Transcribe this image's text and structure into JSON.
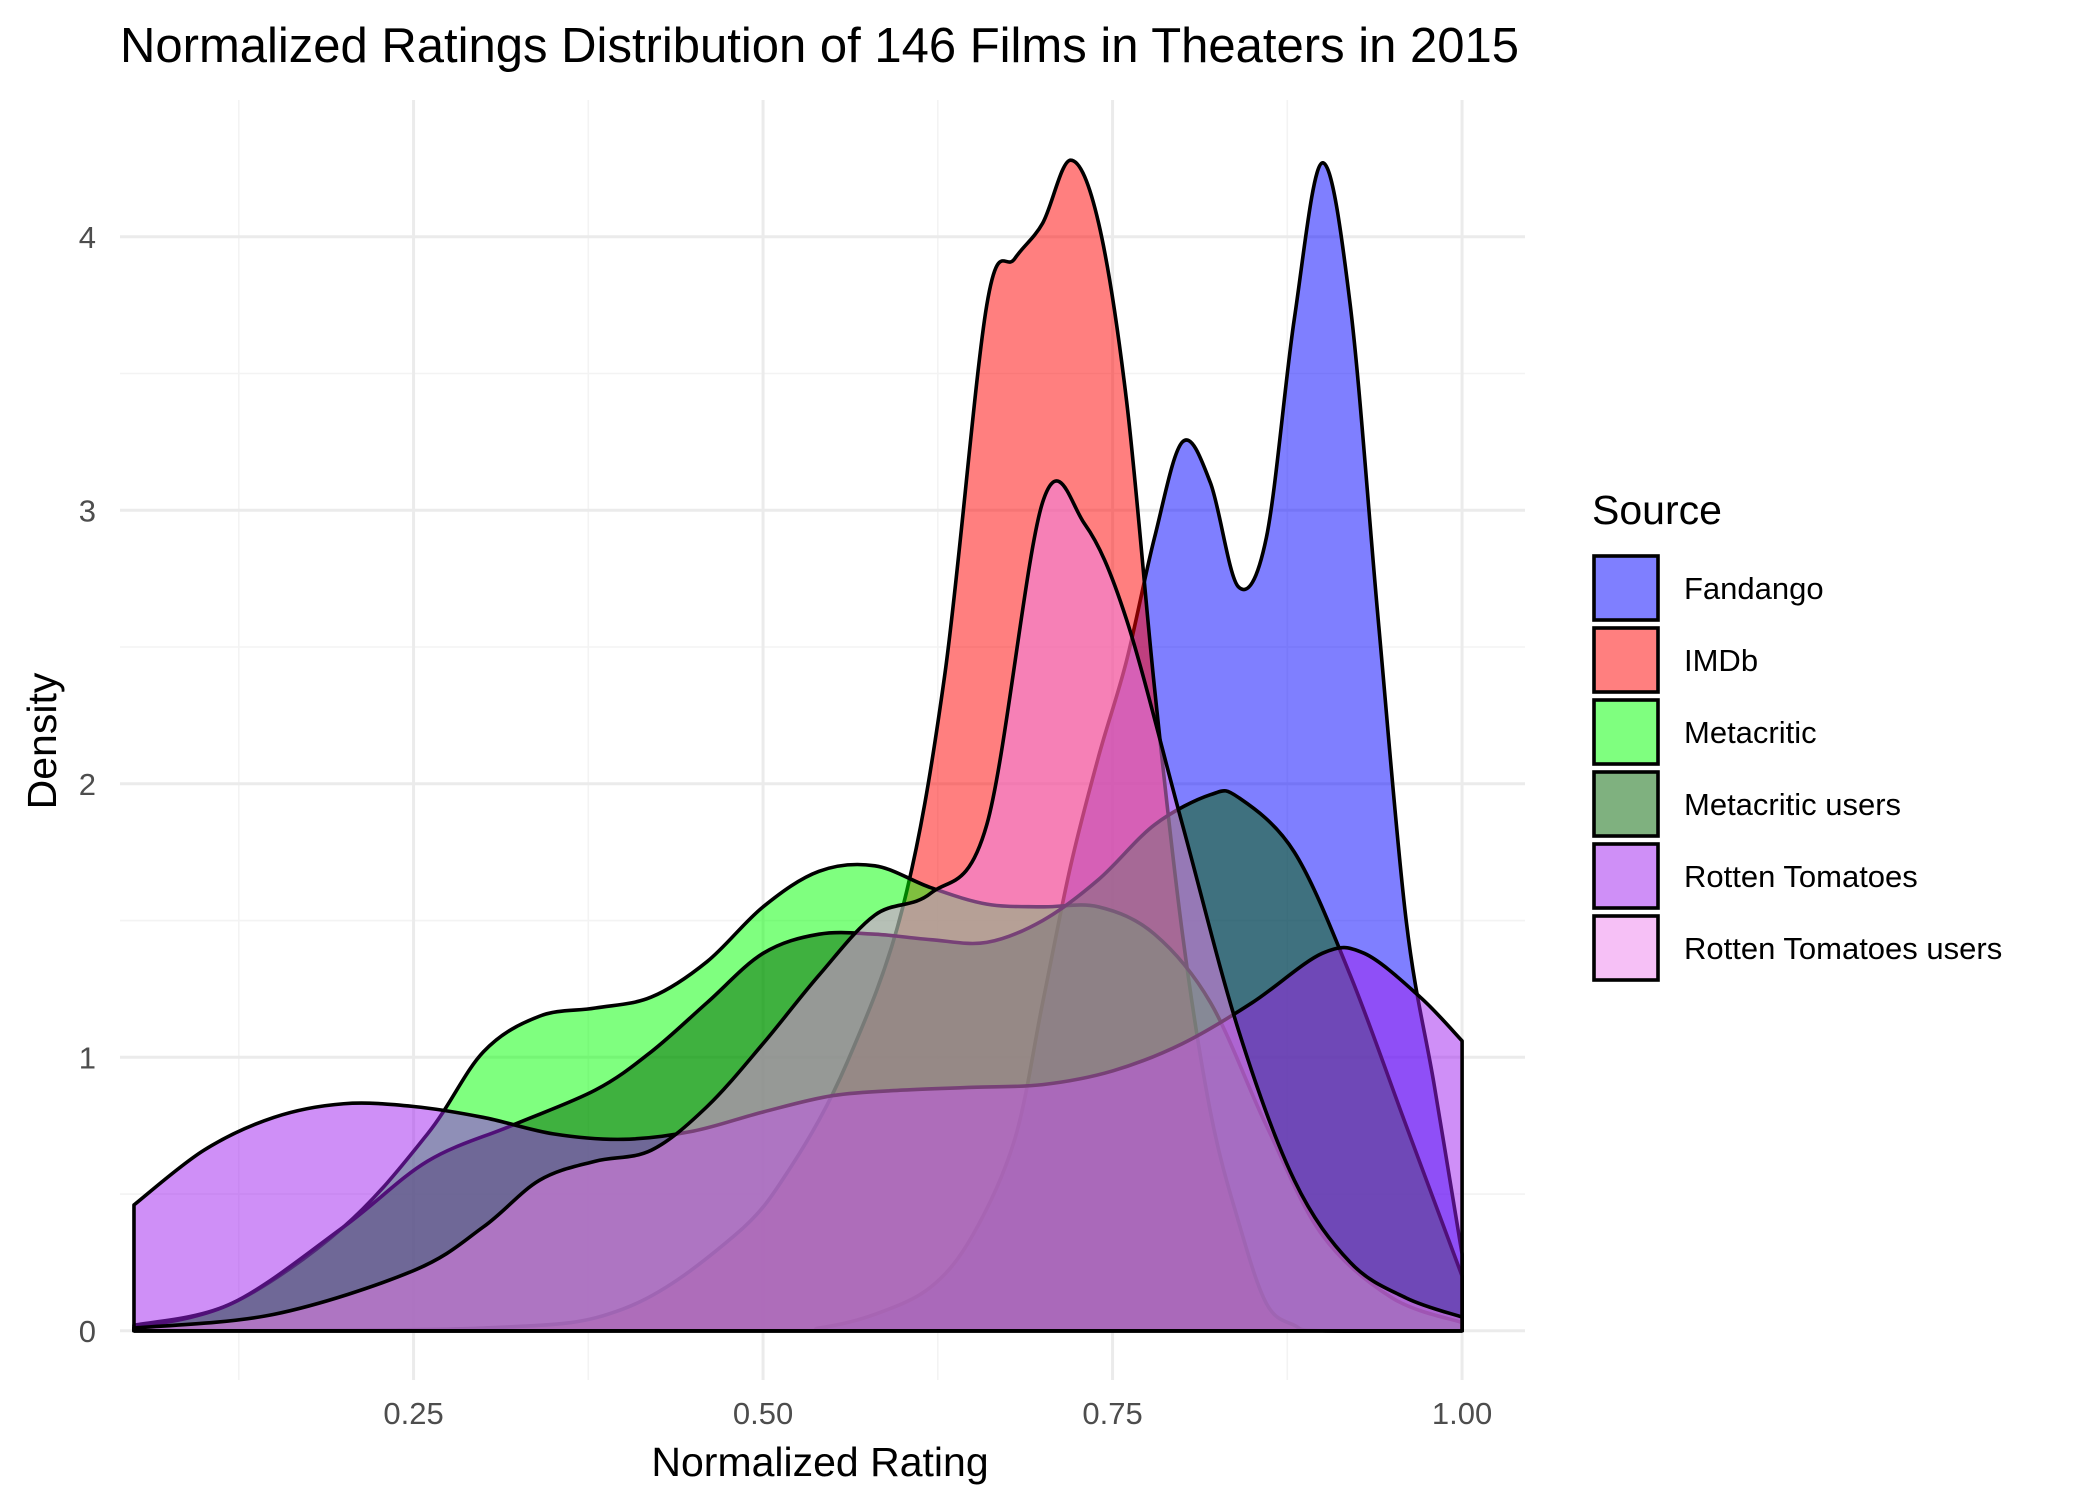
{
  "chart_data": {
    "type": "area",
    "subtype": "density",
    "title": "Normalized Ratings Distribution of 146 Films in Theaters in 2015",
    "xlabel": "Normalized Rating",
    "ylabel": "Density",
    "xlim": [
      0.04,
      1.045
    ],
    "ylim": [
      -0.18,
      4.5
    ],
    "x_ticks": [
      0.25,
      0.5,
      0.75,
      1.0
    ],
    "x_tick_labels": [
      "0.25",
      "0.50",
      "0.75",
      "1.00"
    ],
    "y_ticks": [
      0,
      1,
      2,
      3,
      4
    ],
    "y_tick_labels": [
      "0",
      "1",
      "2",
      "3",
      "4"
    ],
    "grid": true,
    "fill_alpha": 0.5,
    "legend": {
      "title": "Source",
      "position": "right"
    },
    "series": [
      {
        "name": "Fandango",
        "color": "#0000ff",
        "points": [
          [
            0.05,
            0
          ],
          [
            0.5,
            0
          ],
          [
            0.54,
            0.01
          ],
          [
            0.58,
            0.06
          ],
          [
            0.62,
            0.16
          ],
          [
            0.65,
            0.35
          ],
          [
            0.68,
            0.7
          ],
          [
            0.7,
            1.2
          ],
          [
            0.72,
            1.7
          ],
          [
            0.74,
            2.1
          ],
          [
            0.76,
            2.45
          ],
          [
            0.78,
            2.9
          ],
          [
            0.8,
            3.25
          ],
          [
            0.82,
            3.1
          ],
          [
            0.84,
            2.72
          ],
          [
            0.86,
            2.9
          ],
          [
            0.88,
            3.7
          ],
          [
            0.9,
            4.27
          ],
          [
            0.92,
            3.75
          ],
          [
            0.94,
            2.6
          ],
          [
            0.96,
            1.5
          ],
          [
            0.98,
            0.9
          ],
          [
            1.0,
            0.28
          ]
        ]
      },
      {
        "name": "IMDb",
        "color": "#ff0000",
        "points": [
          [
            0.05,
            0
          ],
          [
            0.3,
            0.01
          ],
          [
            0.4,
            0.08
          ],
          [
            0.48,
            0.35
          ],
          [
            0.52,
            0.6
          ],
          [
            0.56,
            0.98
          ],
          [
            0.6,
            1.55
          ],
          [
            0.63,
            2.4
          ],
          [
            0.66,
            3.75
          ],
          [
            0.68,
            3.92
          ],
          [
            0.7,
            4.05
          ],
          [
            0.72,
            4.28
          ],
          [
            0.74,
            4.05
          ],
          [
            0.76,
            3.4
          ],
          [
            0.78,
            2.35
          ],
          [
            0.8,
            1.45
          ],
          [
            0.82,
            0.8
          ],
          [
            0.84,
            0.4
          ],
          [
            0.86,
            0.1
          ],
          [
            0.88,
            0.02
          ],
          [
            0.9,
            0
          ],
          [
            1.0,
            0
          ]
        ]
      },
      {
        "name": "Metacritic",
        "color": "#00ff00",
        "points": [
          [
            0.05,
            0.02
          ],
          [
            0.12,
            0.1
          ],
          [
            0.2,
            0.38
          ],
          [
            0.26,
            0.72
          ],
          [
            0.3,
            1.02
          ],
          [
            0.34,
            1.15
          ],
          [
            0.38,
            1.18
          ],
          [
            0.42,
            1.22
          ],
          [
            0.46,
            1.35
          ],
          [
            0.5,
            1.55
          ],
          [
            0.54,
            1.68
          ],
          [
            0.58,
            1.7
          ],
          [
            0.62,
            1.62
          ],
          [
            0.66,
            1.56
          ],
          [
            0.7,
            1.55
          ],
          [
            0.74,
            1.55
          ],
          [
            0.78,
            1.45
          ],
          [
            0.82,
            1.2
          ],
          [
            0.86,
            0.75
          ],
          [
            0.9,
            0.35
          ],
          [
            0.95,
            0.12
          ],
          [
            1.0,
            0.03
          ]
        ]
      },
      {
        "name": "Metacritic users",
        "color": "#006400",
        "points": [
          [
            0.05,
            0.01
          ],
          [
            0.12,
            0.1
          ],
          [
            0.2,
            0.38
          ],
          [
            0.26,
            0.62
          ],
          [
            0.32,
            0.75
          ],
          [
            0.38,
            0.88
          ],
          [
            0.42,
            1.02
          ],
          [
            0.46,
            1.2
          ],
          [
            0.5,
            1.38
          ],
          [
            0.54,
            1.45
          ],
          [
            0.58,
            1.45
          ],
          [
            0.62,
            1.43
          ],
          [
            0.66,
            1.42
          ],
          [
            0.7,
            1.5
          ],
          [
            0.74,
            1.65
          ],
          [
            0.78,
            1.85
          ],
          [
            0.82,
            1.96
          ],
          [
            0.84,
            1.95
          ],
          [
            0.88,
            1.75
          ],
          [
            0.92,
            1.3
          ],
          [
            0.96,
            0.75
          ],
          [
            1.0,
            0.2
          ]
        ]
      },
      {
        "name": "Rotten Tomatoes",
        "color": "#a020f0",
        "points": [
          [
            0.05,
            0.46
          ],
          [
            0.1,
            0.66
          ],
          [
            0.15,
            0.78
          ],
          [
            0.2,
            0.83
          ],
          [
            0.25,
            0.82
          ],
          [
            0.3,
            0.78
          ],
          [
            0.35,
            0.72
          ],
          [
            0.4,
            0.7
          ],
          [
            0.45,
            0.73
          ],
          [
            0.5,
            0.8
          ],
          [
            0.55,
            0.86
          ],
          [
            0.6,
            0.88
          ],
          [
            0.65,
            0.89
          ],
          [
            0.7,
            0.9
          ],
          [
            0.75,
            0.95
          ],
          [
            0.8,
            1.05
          ],
          [
            0.85,
            1.2
          ],
          [
            0.9,
            1.38
          ],
          [
            0.93,
            1.38
          ],
          [
            0.97,
            1.22
          ],
          [
            1.0,
            1.06
          ]
        ]
      },
      {
        "name": "Rotten Tomatoes users",
        "color": "#ee82ee",
        "points": [
          [
            0.05,
            0.01
          ],
          [
            0.15,
            0.06
          ],
          [
            0.25,
            0.22
          ],
          [
            0.3,
            0.38
          ],
          [
            0.34,
            0.55
          ],
          [
            0.38,
            0.62
          ],
          [
            0.42,
            0.66
          ],
          [
            0.46,
            0.82
          ],
          [
            0.5,
            1.05
          ],
          [
            0.54,
            1.3
          ],
          [
            0.58,
            1.52
          ],
          [
            0.62,
            1.6
          ],
          [
            0.66,
            1.85
          ],
          [
            0.7,
            3.03
          ],
          [
            0.73,
            2.95
          ],
          [
            0.76,
            2.6
          ],
          [
            0.8,
            1.85
          ],
          [
            0.84,
            1.1
          ],
          [
            0.88,
            0.55
          ],
          [
            0.92,
            0.25
          ],
          [
            0.96,
            0.12
          ],
          [
            1.0,
            0.05
          ]
        ]
      }
    ]
  }
}
